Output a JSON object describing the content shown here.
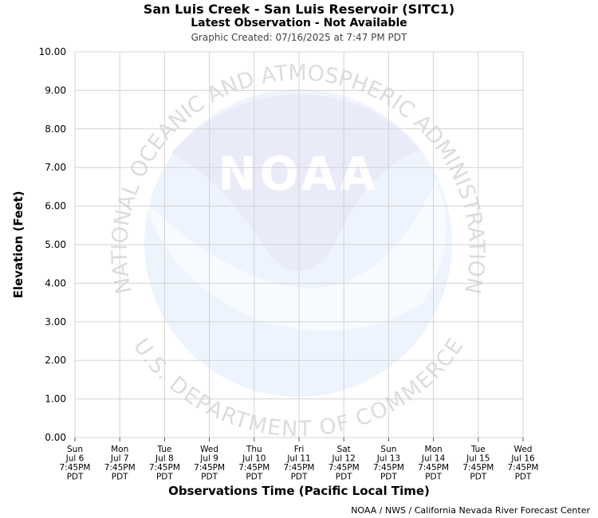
{
  "header": {
    "title": "San Luis Creek - San Luis Reservoir (SITC1)",
    "subtitle": "Latest Observation -  Not Available",
    "created": "Graphic Created: 07/16/2025 at 7:47 PM PDT"
  },
  "footer": {
    "credit": "NOAA / NWS / California Nevada River Forecast Center"
  },
  "watermark": {
    "arc_top": "NATIONAL OCEANIC AND ATMOSPHERIC ADMINISTRATION",
    "arc_bottom": "U.S. DEPARTMENT OF COMMERCE",
    "logo": "NOAA"
  },
  "chart_data": {
    "type": "line",
    "xlabel": "Observations Time (Pacific Local Time)",
    "ylabel": "Elevation (Feet)",
    "ylim": [
      0,
      10
    ],
    "y_ticks": [
      "0.00",
      "1.00",
      "2.00",
      "3.00",
      "4.00",
      "5.00",
      "6.00",
      "7.00",
      "8.00",
      "9.00",
      "10.00"
    ],
    "x_ticks": [
      [
        "Sun",
        "Jul 6",
        "7:45PM",
        "PDT"
      ],
      [
        "Mon",
        "Jul 7",
        "7:45PM",
        "PDT"
      ],
      [
        "Tue",
        "Jul 8",
        "7:45PM",
        "PDT"
      ],
      [
        "Wed",
        "Jul 9",
        "7:45PM",
        "PDT"
      ],
      [
        "Thu",
        "Jul 10",
        "7:45PM",
        "PDT"
      ],
      [
        "Fri",
        "Jul 11",
        "7:45PM",
        "PDT"
      ],
      [
        "Sat",
        "Jul 12",
        "7:45PM",
        "PDT"
      ],
      [
        "Sun",
        "Jul 13",
        "7:45PM",
        "PDT"
      ],
      [
        "Mon",
        "Jul 14",
        "7:45PM",
        "PDT"
      ],
      [
        "Tue",
        "Jul 15",
        "7:45PM",
        "PDT"
      ],
      [
        "Wed",
        "Jul 16",
        "7:45PM",
        "PDT"
      ]
    ],
    "grid": true,
    "series": []
  },
  "colors": {
    "grid": "#d3d3d3",
    "logo_light": "#eef4fd",
    "logo_mid": "#e9ebf8",
    "watermark_text": "#dcdcdc"
  }
}
